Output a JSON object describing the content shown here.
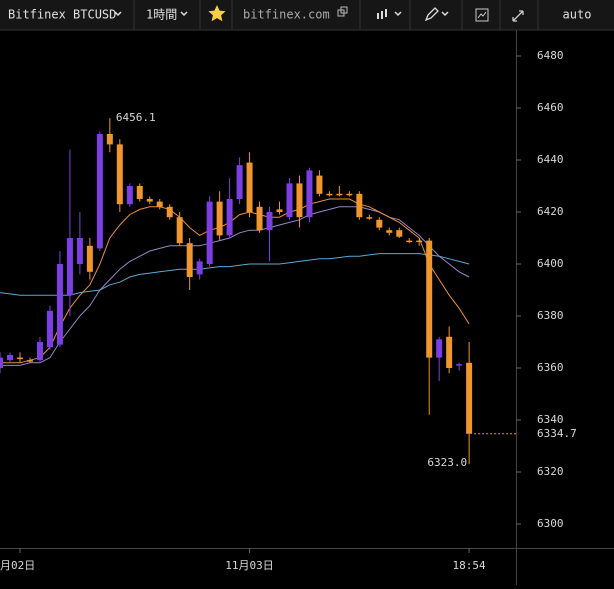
{
  "toolbar": {
    "symbol": "Bitfinex BTCUSD",
    "interval": "1時間",
    "site": "bitfinex.com",
    "scale_mode": "auto"
  },
  "chart_data": {
    "type": "candlestick",
    "categories": [
      null,
      null,
      "月02日",
      null,
      null,
      null,
      null,
      null,
      null,
      null,
      null,
      null,
      null,
      null,
      null,
      null,
      null,
      null,
      null,
      null,
      null,
      null,
      null,
      null,
      null,
      "11月03日",
      null,
      null,
      null,
      null,
      null,
      null,
      null,
      null,
      null,
      null,
      null,
      null,
      null,
      null,
      null,
      null,
      null,
      null,
      null,
      null,
      null,
      "18:54"
    ],
    "open": [
      6360,
      6363,
      6364,
      6363,
      6363,
      6368,
      6369,
      6388,
      6400,
      6407,
      6406,
      6450,
      6446,
      6423,
      6430,
      6425,
      6424,
      6422,
      6418,
      6408,
      6396,
      6400,
      6424,
      6411,
      6425,
      6439,
      6422,
      6413,
      6421,
      6418,
      6431,
      6418,
      6434,
      6427,
      6427,
      6427,
      6427,
      6418,
      6417,
      6413,
      6413,
      6409,
      6409,
      6409,
      6364,
      6372,
      6361,
      6362
    ],
    "high": [
      6366,
      6366,
      6366,
      6364,
      6372,
      6384,
      6405,
      6444,
      6420,
      6410,
      6451,
      6456.1,
      6448,
      6431,
      6431,
      6426,
      6425,
      6423,
      6420,
      6410,
      6402,
      6426,
      6428,
      6433,
      6441,
      6443,
      6424,
      6422,
      6424,
      6433,
      6434,
      6437,
      6436,
      6428,
      6430,
      6428,
      6428,
      6419,
      6418,
      6414,
      6414,
      6410,
      6410,
      6410,
      6372,
      6376,
      6362,
      6370
    ],
    "low": [
      6358,
      6362,
      6362,
      6362,
      6362,
      6367,
      6368,
      6380,
      6396,
      6394,
      6405,
      6443,
      6420,
      6422,
      6424,
      6423,
      6421,
      6417,
      6407,
      6390,
      6394,
      6399,
      6409,
      6410,
      6423,
      6418,
      6412,
      6401,
      6419,
      6417,
      6414,
      6416,
      6426,
      6426,
      6426,
      6426,
      6417,
      6417,
      6413,
      6411,
      6410,
      6408,
      6407,
      6342,
      6355,
      6358,
      6359,
      6323
    ],
    "close": [
      6364,
      6365,
      6364,
      6363,
      6370,
      6382,
      6400,
      6410,
      6410,
      6397,
      6450,
      6446,
      6423,
      6430,
      6425,
      6424,
      6422,
      6418,
      6408,
      6395,
      6401,
      6424,
      6411,
      6425,
      6438,
      6420,
      6413,
      6420,
      6420,
      6431,
      6418,
      6436,
      6427,
      6427,
      6427,
      6427,
      6418,
      6418,
      6414,
      6412,
      6410.5,
      6408.5,
      6409,
      6364,
      6371,
      6360,
      6361.5,
      6334.7
    ],
    "up_color": "#7b3fe4",
    "down_color": "#f0962e",
    "ma_lines": [
      {
        "color": "#e8903a",
        "values": [
          6362,
          6362,
          6362,
          6363,
          6364,
          6368,
          6376,
          6383,
          6388,
          6392,
          6400,
          6410,
          6415,
          6419,
          6421,
          6422,
          6422,
          6421,
          6418,
          6414,
          6411,
          6413,
          6414,
          6416,
          6419,
          6420,
          6419,
          6418,
          6418,
          6420,
          6421,
          6423,
          6424,
          6425,
          6425,
          6425,
          6423,
          6422,
          6420,
          6418,
          6416,
          6413,
          6410,
          6400,
          6394,
          6388,
          6383,
          6377
        ]
      },
      {
        "color": "#9a86c8",
        "values": [
          6361,
          6361,
          6361,
          6362,
          6362,
          6364,
          6370,
          6375,
          6380,
          6384,
          6390,
          6394,
          6398,
          6401,
          6403,
          6405,
          6406,
          6407,
          6407,
          6407,
          6407,
          6408,
          6409,
          6410,
          6412,
          6413,
          6413,
          6414,
          6415,
          6416,
          6417,
          6419,
          6420,
          6421,
          6422,
          6422,
          6422,
          6421,
          6420,
          6418,
          6417,
          6414,
          6411,
          6407,
          6403,
          6400,
          6397,
          6395
        ]
      },
      {
        "color": "#5fa8d3",
        "values": [
          6389,
          6388.5,
          6388,
          6388,
          6388,
          6388,
          6388,
          6388,
          6389,
          6389.5,
          6390,
          6392,
          6393,
          6395,
          6396,
          6396.5,
          6397,
          6397.5,
          6398,
          6398,
          6398,
          6398.5,
          6399,
          6399,
          6399.5,
          6400,
          6400,
          6400,
          6400,
          6400.5,
          6401,
          6401.5,
          6402,
          6402,
          6402.5,
          6403,
          6403,
          6403.5,
          6404,
          6404,
          6404,
          6404,
          6404,
          6403.5,
          6403,
          6402,
          6401,
          6400
        ]
      }
    ],
    "ylim": [
      6290,
      6490
    ],
    "yticks": [
      6300,
      6320,
      6340,
      6360,
      6380,
      6400,
      6420,
      6440,
      6460,
      6480
    ],
    "annotations": {
      "high": "6456.1",
      "low": "6323.0",
      "last": "6334.7"
    }
  }
}
